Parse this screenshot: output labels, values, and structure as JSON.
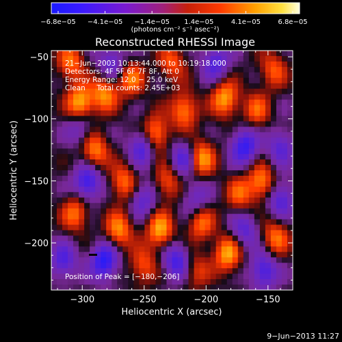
{
  "chart_data": {
    "type": "heatmap",
    "title": "Reconstructed RHESSI Image",
    "xlabel": "Heliocentric X (arcsec)",
    "ylabel": "Heliocentric Y (arcsec)",
    "xlim": [
      -325,
      -130
    ],
    "ylim": [
      -238,
      -45
    ],
    "x_ticks": [
      -300,
      -250,
      -200,
      -150
    ],
    "y_ticks": [
      -50,
      -100,
      -150,
      -200
    ],
    "x_tick_labels": [
      "−300",
      "−250",
      "−200",
      "−150"
    ],
    "y_tick_labels": [
      "−50",
      "−100",
      "−150",
      "−200"
    ],
    "colorbar": {
      "ticks": [
        "−6.8e−05",
        "−4.1e−05",
        "−1.4e−05",
        "1.4e−05",
        "4.1e−05",
        "6.8e−05"
      ],
      "min": -6.8e-05,
      "max": 6.8e-05,
      "units_label": "(photons cm⁻² s⁻¹ asec⁻²)"
    },
    "annotations": [
      "21−Jun−2003 10:13:44.000 to 10:19:18.000",
      "Detectors: 4F 5F 6F 7F 8F, Att 0",
      "Energy Range: 12.0 − 25.0 keV",
      "Clean     Total counts: 2.45E+03"
    ],
    "peak_label": "Position of Peak = [−180,−206]",
    "peak": [
      -180,
      -206
    ],
    "grid": false
  },
  "footer": {
    "date": "9−Jun−2013 11:27"
  }
}
